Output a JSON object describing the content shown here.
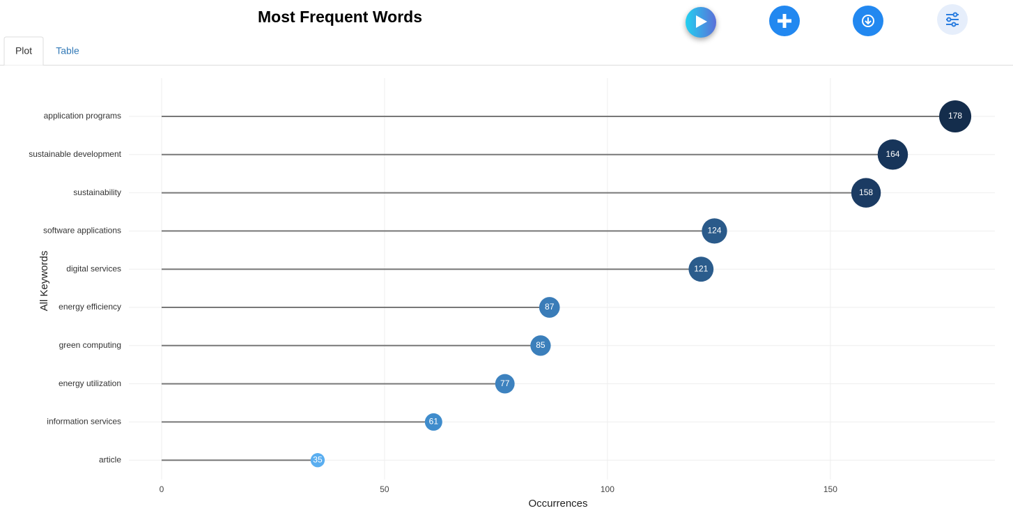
{
  "header": {
    "title": "Most Frequent Words"
  },
  "tabs": [
    "Plot",
    "Table"
  ],
  "chart_data": {
    "type": "lollipop",
    "x_label": "Occurrences",
    "y_label": "All Keywords",
    "categories": [
      "application programs",
      "sustainable development",
      "sustainability",
      "software applications",
      "digital services",
      "energy efficiency",
      "green computing",
      "energy utilization",
      "information services",
      "article"
    ],
    "values": [
      178,
      164,
      158,
      124,
      121,
      87,
      85,
      77,
      61,
      35
    ],
    "colors": [
      "#142d4c",
      "#17355a",
      "#1b3b63",
      "#2a5a8a",
      "#2b5c8c",
      "#3a7cb8",
      "#3b7fbb",
      "#3d82bf",
      "#3f8ccc",
      "#5aaef0"
    ],
    "xlim": [
      -7.34,
      186.9
    ],
    "xticks": [
      0,
      50,
      100,
      150
    ],
    "grid": true
  }
}
